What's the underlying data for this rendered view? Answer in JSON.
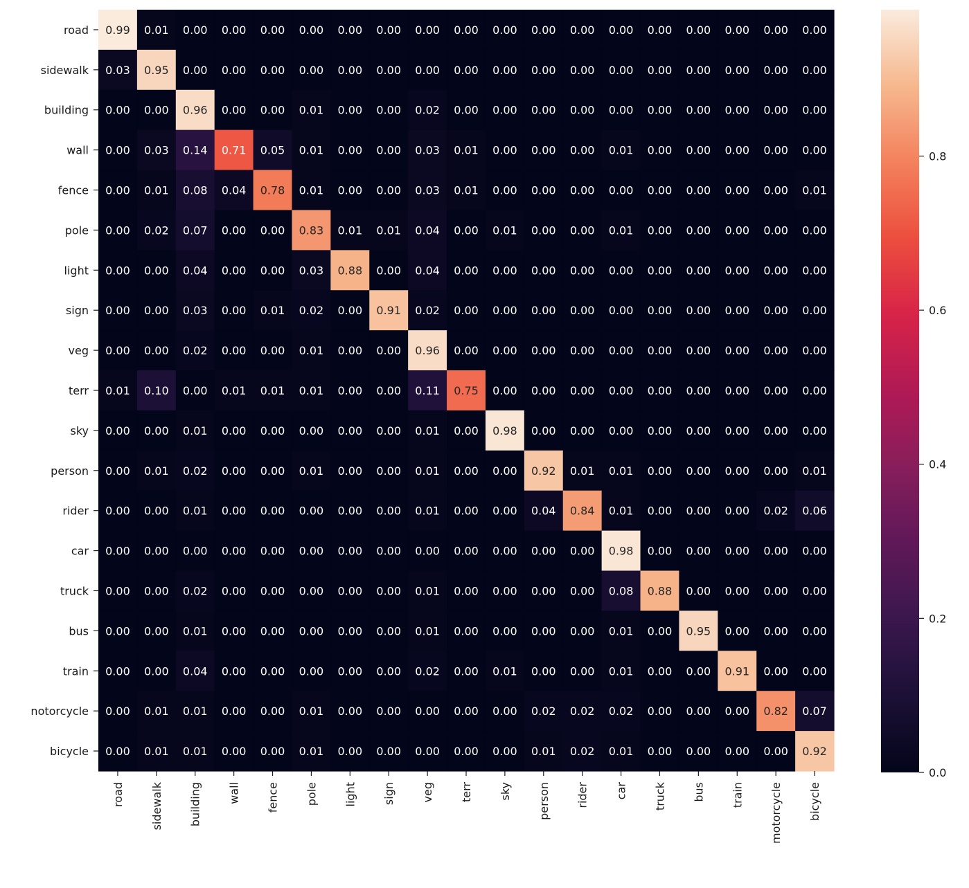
{
  "chart_data": {
    "type": "heatmap",
    "title": "",
    "xlabel": "",
    "ylabel": "",
    "y_categories": [
      "road",
      "sidewalk",
      "building",
      "wall",
      "fence",
      "pole",
      "light",
      "sign",
      "veg",
      "terr",
      "sky",
      "person",
      "rider",
      "car",
      "truck",
      "bus",
      "train",
      "notorcycle",
      "bicycle"
    ],
    "x_categories": [
      "road",
      "sidewalk",
      "building",
      "wall",
      "fence",
      "pole",
      "light",
      "sign",
      "veg",
      "terr",
      "sky",
      "person",
      "rider",
      "car",
      "truck",
      "bus",
      "train",
      "motorcycle",
      "bicycle"
    ],
    "values": [
      [
        0.99,
        0.01,
        0.0,
        0.0,
        0.0,
        0.0,
        0.0,
        0.0,
        0.0,
        0.0,
        0.0,
        0.0,
        0.0,
        0.0,
        0.0,
        0.0,
        0.0,
        0.0,
        0.0
      ],
      [
        0.03,
        0.95,
        0.0,
        0.0,
        0.0,
        0.0,
        0.0,
        0.0,
        0.0,
        0.0,
        0.0,
        0.0,
        0.0,
        0.0,
        0.0,
        0.0,
        0.0,
        0.0,
        0.0
      ],
      [
        0.0,
        0.0,
        0.96,
        0.0,
        0.0,
        0.01,
        0.0,
        0.0,
        0.02,
        0.0,
        0.0,
        0.0,
        0.0,
        0.0,
        0.0,
        0.0,
        0.0,
        0.0,
        0.0
      ],
      [
        0.0,
        0.03,
        0.14,
        0.71,
        0.05,
        0.01,
        0.0,
        0.0,
        0.03,
        0.01,
        0.0,
        0.0,
        0.0,
        0.01,
        0.0,
        0.0,
        0.0,
        0.0,
        0.0
      ],
      [
        0.0,
        0.01,
        0.08,
        0.04,
        0.78,
        0.01,
        0.0,
        0.0,
        0.03,
        0.01,
        0.0,
        0.0,
        0.0,
        0.0,
        0.0,
        0.0,
        0.0,
        0.0,
        0.01
      ],
      [
        0.0,
        0.02,
        0.07,
        0.0,
        0.0,
        0.83,
        0.01,
        0.01,
        0.04,
        0.0,
        0.01,
        0.0,
        0.0,
        0.01,
        0.0,
        0.0,
        0.0,
        0.0,
        0.0
      ],
      [
        0.0,
        0.0,
        0.04,
        0.0,
        0.0,
        0.03,
        0.88,
        0.0,
        0.04,
        0.0,
        0.0,
        0.0,
        0.0,
        0.0,
        0.0,
        0.0,
        0.0,
        0.0,
        0.0
      ],
      [
        0.0,
        0.0,
        0.03,
        0.0,
        0.01,
        0.02,
        0.0,
        0.91,
        0.02,
        0.0,
        0.0,
        0.0,
        0.0,
        0.0,
        0.0,
        0.0,
        0.0,
        0.0,
        0.0
      ],
      [
        0.0,
        0.0,
        0.02,
        0.0,
        0.0,
        0.01,
        0.0,
        0.0,
        0.96,
        0.0,
        0.0,
        0.0,
        0.0,
        0.0,
        0.0,
        0.0,
        0.0,
        0.0,
        0.0
      ],
      [
        0.01,
        0.1,
        0.0,
        0.01,
        0.01,
        0.01,
        0.0,
        0.0,
        0.11,
        0.75,
        0.0,
        0.0,
        0.0,
        0.0,
        0.0,
        0.0,
        0.0,
        0.0,
        0.0
      ],
      [
        0.0,
        0.0,
        0.01,
        0.0,
        0.0,
        0.0,
        0.0,
        0.0,
        0.01,
        0.0,
        0.98,
        0.0,
        0.0,
        0.0,
        0.0,
        0.0,
        0.0,
        0.0,
        0.0
      ],
      [
        0.0,
        0.01,
        0.02,
        0.0,
        0.0,
        0.01,
        0.0,
        0.0,
        0.01,
        0.0,
        0.0,
        0.92,
        0.01,
        0.01,
        0.0,
        0.0,
        0.0,
        0.0,
        0.01
      ],
      [
        0.0,
        0.0,
        0.01,
        0.0,
        0.0,
        0.0,
        0.0,
        0.0,
        0.01,
        0.0,
        0.0,
        0.04,
        0.84,
        0.01,
        0.0,
        0.0,
        0.0,
        0.02,
        0.06
      ],
      [
        0.0,
        0.0,
        0.0,
        0.0,
        0.0,
        0.0,
        0.0,
        0.0,
        0.0,
        0.0,
        0.0,
        0.0,
        0.0,
        0.98,
        0.0,
        0.0,
        0.0,
        0.0,
        0.0
      ],
      [
        0.0,
        0.0,
        0.02,
        0.0,
        0.0,
        0.0,
        0.0,
        0.0,
        0.01,
        0.0,
        0.0,
        0.0,
        0.0,
        0.08,
        0.88,
        0.0,
        0.0,
        0.0,
        0.0
      ],
      [
        0.0,
        0.0,
        0.01,
        0.0,
        0.0,
        0.0,
        0.0,
        0.0,
        0.01,
        0.0,
        0.0,
        0.0,
        0.0,
        0.01,
        0.0,
        0.95,
        0.0,
        0.0,
        0.0
      ],
      [
        0.0,
        0.0,
        0.04,
        0.0,
        0.0,
        0.0,
        0.0,
        0.0,
        0.02,
        0.0,
        0.01,
        0.0,
        0.0,
        0.01,
        0.0,
        0.0,
        0.91,
        0.0,
        0.0
      ],
      [
        0.0,
        0.01,
        0.01,
        0.0,
        0.0,
        0.01,
        0.0,
        0.0,
        0.0,
        0.0,
        0.0,
        0.02,
        0.02,
        0.02,
        0.0,
        0.0,
        0.0,
        0.82,
        0.07
      ],
      [
        0.0,
        0.01,
        0.01,
        0.0,
        0.0,
        0.01,
        0.0,
        0.0,
        0.0,
        0.0,
        0.0,
        0.01,
        0.02,
        0.01,
        0.0,
        0.0,
        0.0,
        0.0,
        0.92
      ]
    ],
    "value_format": "0.00",
    "colormap": "rocket",
    "vmin": 0.0,
    "vmax": 0.99,
    "colorbar": {
      "ticks": [
        0.0,
        0.2,
        0.4,
        0.6,
        0.8
      ],
      "tick_labels": [
        "0.0",
        "0.2",
        "0.4",
        "0.6",
        "0.8"
      ]
    },
    "grid": false,
    "legend": "colorbar-right"
  }
}
